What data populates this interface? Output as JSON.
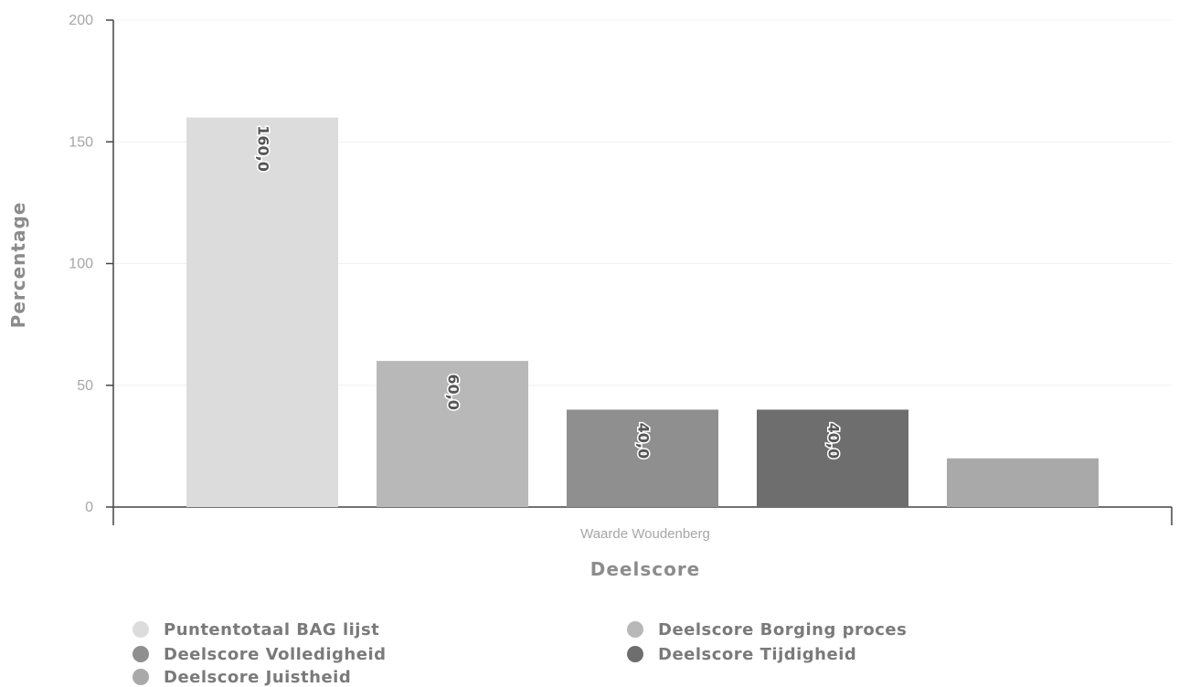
{
  "chart_data": {
    "type": "bar",
    "xlabel": "Deelscore",
    "ylabel": "Percentage",
    "ylim": [
      0,
      200
    ],
    "yticks": [
      0,
      50,
      100,
      150,
      200
    ],
    "categories": [
      "Waarde Woudenberg"
    ],
    "grid": true,
    "legend_position": "bottom",
    "series": [
      {
        "name": "Puntentotaal BAG lijst",
        "values": [
          160
        ],
        "label": "160,0",
        "color": "#dcdcdc"
      },
      {
        "name": "Deelscore Borging proces",
        "values": [
          60
        ],
        "label": "60,0",
        "color": "#b8b8b8"
      },
      {
        "name": "Deelscore Volledigheid",
        "values": [
          40
        ],
        "label": "40,0",
        "color": "#8f8f8f"
      },
      {
        "name": "Deelscore Tijdigheid",
        "values": [
          40
        ],
        "label": "40,0",
        "color": "#6e6e6e"
      },
      {
        "name": "Deelscore Juistheid",
        "values": [
          20
        ],
        "label": "",
        "color": "#a9a9a9"
      }
    ]
  }
}
